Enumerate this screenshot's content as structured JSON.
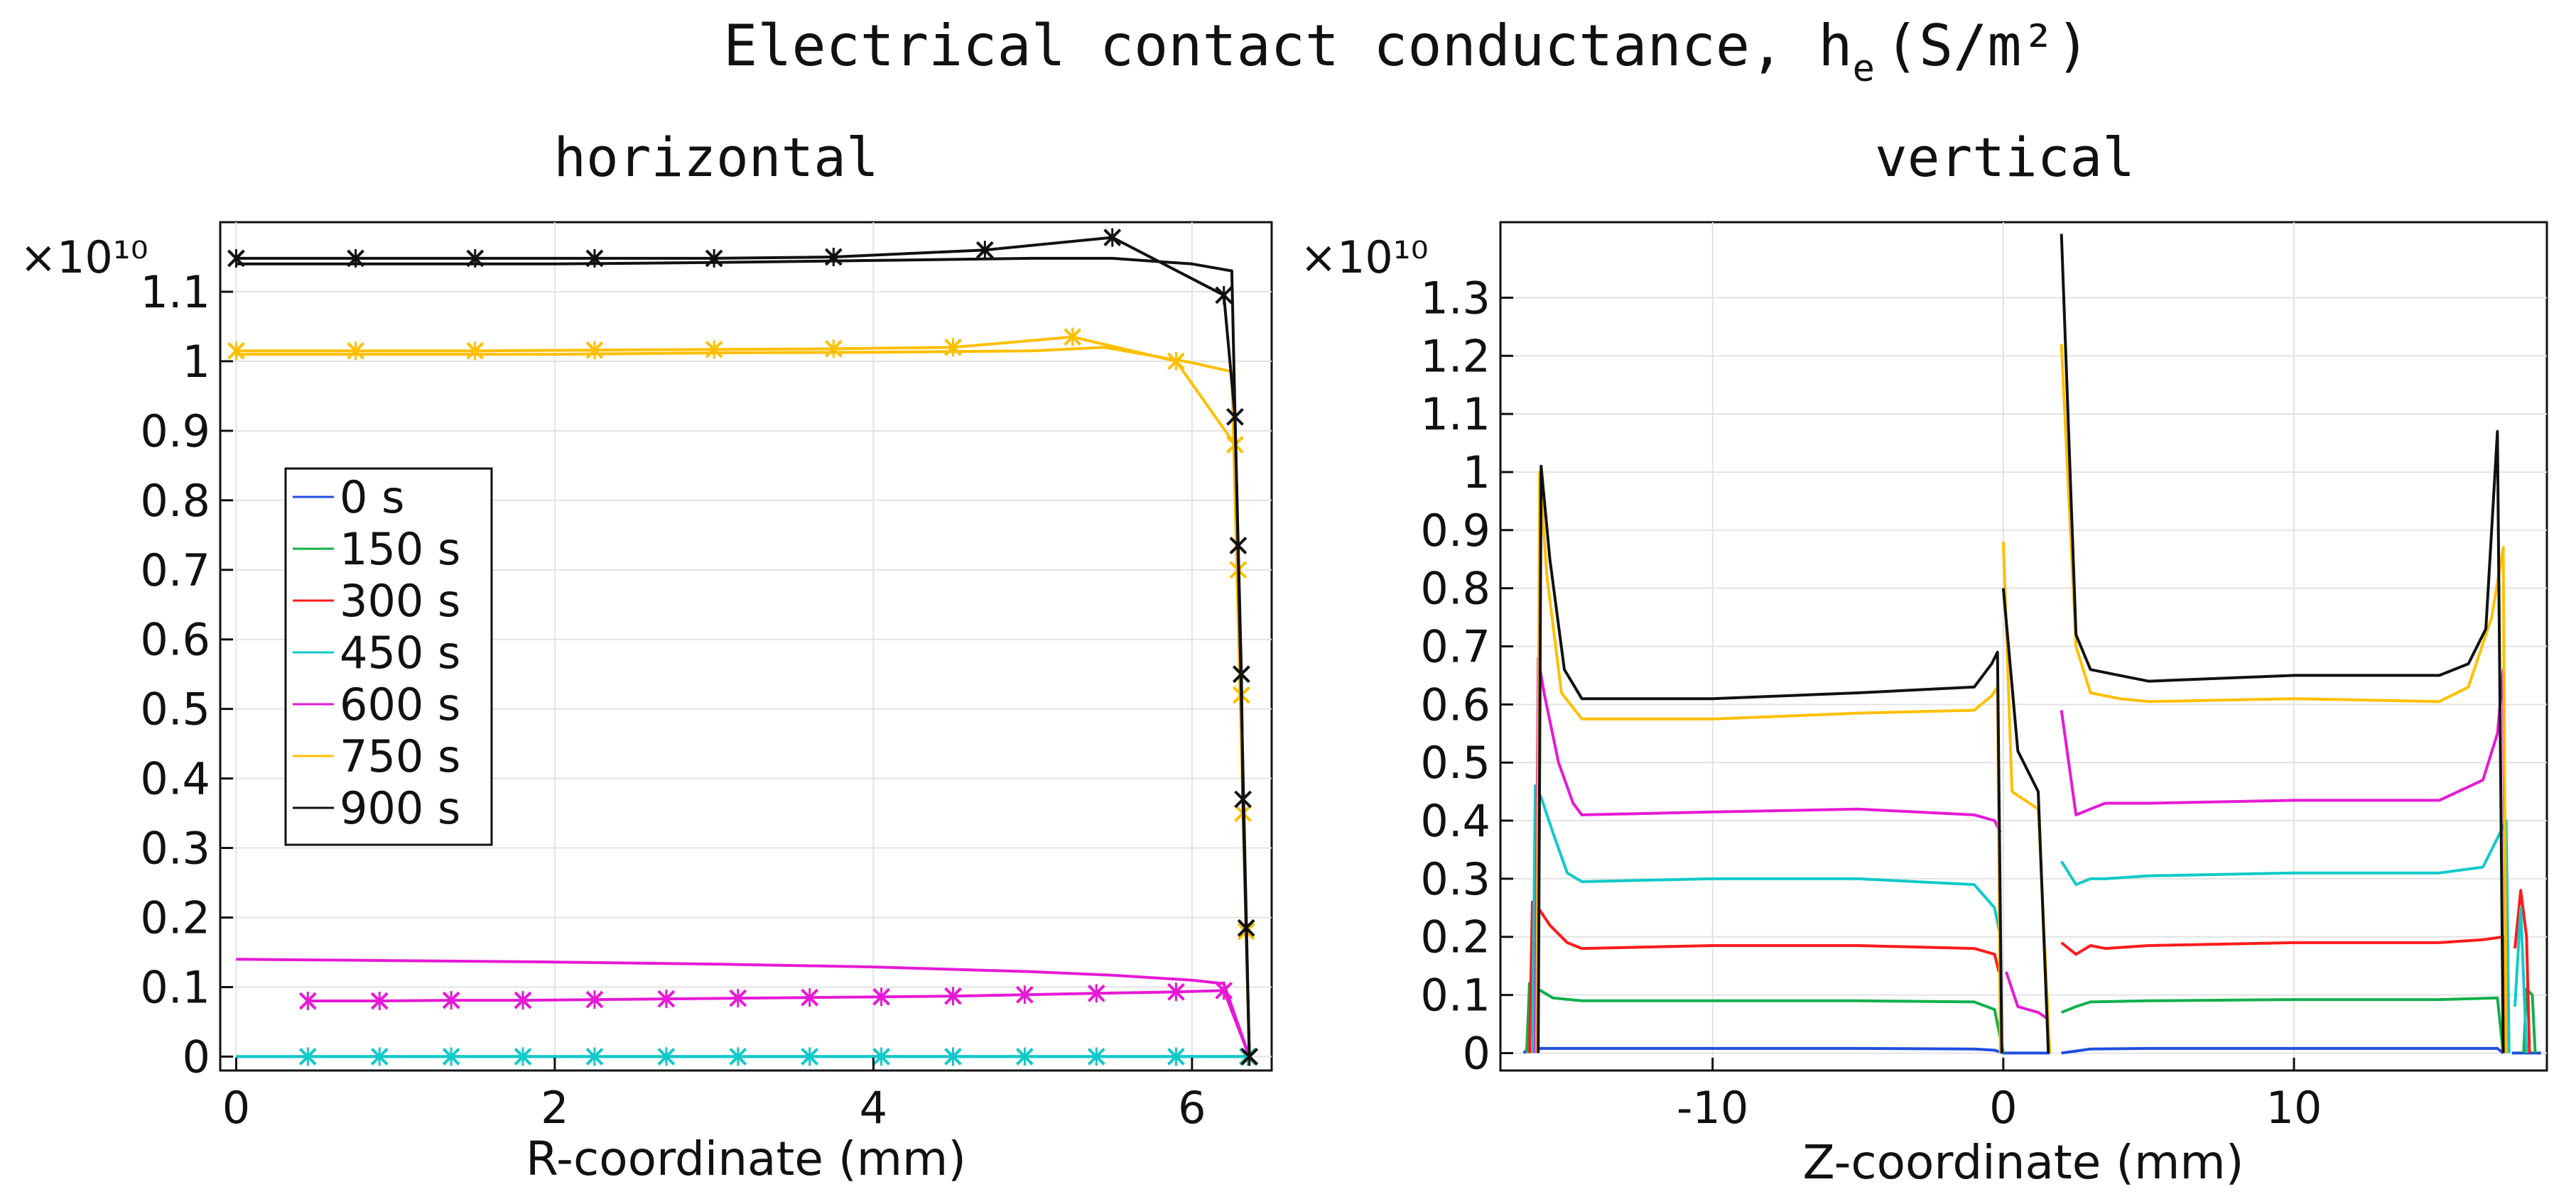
{
  "figure": {
    "title_text": "Electrical contact conductance, h",
    "title_subscript": "e",
    "title_units": "(S/m²)"
  },
  "chart_data": [
    {
      "type": "line",
      "panel": "horizontal",
      "title": "horizontal",
      "xlabel": "R-coordinate (mm)",
      "ylabel": "",
      "y_multiplier": "×10¹⁰",
      "xlim": [
        -0.1,
        6.5
      ],
      "ylim": [
        -0.02,
        1.2
      ],
      "xticks": [
        0,
        2,
        4,
        6
      ],
      "yticks": [
        0,
        0.1,
        0.2,
        0.3,
        0.4,
        0.5,
        0.6,
        0.7,
        0.8,
        0.9,
        1,
        1.1
      ],
      "grid": true,
      "legend": {
        "placement": "center-left",
        "entries": [
          {
            "label": "0 s",
            "color": "#1f4fe0"
          },
          {
            "label": "150 s",
            "color": "#11b04a"
          },
          {
            "label": "300 s",
            "color": "#ff1a1a"
          },
          {
            "label": "450 s",
            "color": "#11c9c9"
          },
          {
            "label": "600 s",
            "color": "#e619d6"
          },
          {
            "label": "750 s",
            "color": "#ffbf00"
          },
          {
            "label": "900 s",
            "color": "#111111"
          }
        ]
      },
      "series": [
        {
          "name": "0 s plain",
          "color": "#1f4fe0",
          "marker": "none",
          "x": [
            0,
            6.3,
            6.36
          ],
          "y": [
            0,
            0,
            0
          ]
        },
        {
          "name": "450 s plain",
          "color": "#11c9c9",
          "marker": "none",
          "x": [
            0,
            6.3,
            6.36
          ],
          "y": [
            0,
            0,
            0
          ]
        },
        {
          "name": "450 s marked",
          "color": "#11c9c9",
          "marker": "x",
          "x": [
            0.45,
            0.9,
            1.35,
            1.8,
            2.25,
            2.7,
            3.15,
            3.6,
            4.05,
            4.5,
            4.95,
            5.4,
            5.9,
            6.35
          ],
          "y": [
            0,
            0,
            0,
            0,
            0,
            0,
            0,
            0,
            0,
            0,
            0,
            0,
            0,
            0
          ]
        },
        {
          "name": "600 s plain",
          "color": "#e619d6",
          "marker": "none",
          "x": [
            0,
            1,
            2,
            3,
            4,
            5,
            5.5,
            6.0,
            6.2,
            6.36
          ],
          "y": [
            0.14,
            0.138,
            0.136,
            0.133,
            0.129,
            0.122,
            0.117,
            0.11,
            0.105,
            0.0
          ]
        },
        {
          "name": "600 s marked",
          "color": "#e619d6",
          "marker": "x",
          "x": [
            0.45,
            0.9,
            1.35,
            1.8,
            2.25,
            2.7,
            3.15,
            3.6,
            4.05,
            4.5,
            4.95,
            5.4,
            5.9,
            6.2,
            6.36
          ],
          "y": [
            0.08,
            0.08,
            0.081,
            0.081,
            0.082,
            0.083,
            0.084,
            0.085,
            0.086,
            0.087,
            0.089,
            0.091,
            0.093,
            0.095,
            0.0
          ]
        },
        {
          "name": "750 s plain",
          "color": "#ffbf00",
          "marker": "none",
          "x": [
            0,
            1,
            2,
            3,
            4,
            5,
            5.45,
            6.0,
            6.25,
            6.36
          ],
          "y": [
            1.01,
            1.01,
            1.01,
            1.012,
            1.013,
            1.015,
            1.02,
            0.998,
            0.985,
            0.0
          ]
        },
        {
          "name": "750 s marked",
          "color": "#ffbf00",
          "marker": "x",
          "x": [
            0,
            0.75,
            1.5,
            2.25,
            3.0,
            3.75,
            4.5,
            5.25,
            5.9,
            6.27,
            6.29,
            6.31,
            6.32,
            6.34,
            6.36
          ],
          "y": [
            1.015,
            1.015,
            1.015,
            1.016,
            1.017,
            1.018,
            1.02,
            1.035,
            1.0,
            0.88,
            0.7,
            0.52,
            0.35,
            0.18,
            0.0
          ]
        },
        {
          "name": "900 s plain",
          "color": "#111111",
          "marker": "none",
          "x": [
            0,
            1,
            2,
            3,
            4,
            5,
            5.5,
            6.0,
            6.25,
            6.36
          ],
          "y": [
            1.14,
            1.14,
            1.14,
            1.142,
            1.145,
            1.148,
            1.148,
            1.14,
            1.13,
            0.0
          ]
        },
        {
          "name": "900 s marked",
          "color": "#111111",
          "marker": "x",
          "x": [
            0,
            0.75,
            1.5,
            2.25,
            3.0,
            3.75,
            4.7,
            5.5,
            6.2,
            6.27,
            6.29,
            6.31,
            6.32,
            6.34,
            6.36
          ],
          "y": [
            1.148,
            1.148,
            1.148,
            1.148,
            1.148,
            1.15,
            1.16,
            1.178,
            1.095,
            0.92,
            0.735,
            0.55,
            0.37,
            0.185,
            0.0
          ]
        }
      ]
    },
    {
      "type": "line",
      "panel": "vertical",
      "title": "vertical",
      "xlabel": "Z-coordinate (mm)",
      "ylabel": "",
      "y_multiplier": "×10¹⁰",
      "xlim": [
        -17.3,
        18.7
      ],
      "ylim": [
        -0.03,
        1.43
      ],
      "xticks": [
        -10,
        0,
        10
      ],
      "yticks": [
        0,
        0.1,
        0.2,
        0.3,
        0.4,
        0.5,
        0.6,
        0.7,
        0.8,
        0.9,
        1,
        1.1,
        1.2,
        1.3
      ],
      "grid": true,
      "series": [
        {
          "name": "0 s",
          "color": "#1f4fe0",
          "segments": [
            {
              "x": [
                -16.5,
                -16.4,
                -16.0,
                -15.5,
                -14.5,
                -10,
                -5,
                -1,
                -0.3,
                0.0
              ],
              "y": [
                0,
                0.005,
                0.008,
                0.008,
                0.008,
                0.008,
                0.008,
                0.007,
                0.005,
                0.0
              ]
            },
            {
              "x": [
                0.0,
                1.6
              ],
              "y": [
                0.0,
                0.0
              ]
            },
            {
              "x": [
                2.0,
                3.0,
                5,
                10,
                15,
                17,
                17.2
              ],
              "y": [
                0.0,
                0.007,
                0.008,
                0.008,
                0.008,
                0.008,
                0.0
              ]
            },
            {
              "x": [
                17.5,
                18.3,
                18.5
              ],
              "y": [
                0,
                0,
                0
              ]
            }
          ]
        },
        {
          "name": "150 s",
          "color": "#11b04a",
          "segments": [
            {
              "x": [
                -16.4,
                -16.3,
                -16.0,
                -15.5,
                -14.5,
                -10,
                -5,
                -1,
                -0.3,
                0.0
              ],
              "y": [
                0,
                0.12,
                0.11,
                0.095,
                0.09,
                0.09,
                0.09,
                0.088,
                0.075,
                0.0
              ]
            },
            {
              "x": [
                2.0,
                2.5,
                3.0,
                5,
                10,
                15,
                17,
                17.2
              ],
              "y": [
                0.07,
                0.08,
                0.088,
                0.09,
                0.092,
                0.092,
                0.095,
                0.0
              ]
            },
            {
              "x": [
                17.9,
                18.0,
                18.2,
                18.3
              ],
              "y": [
                0,
                0.11,
                0.1,
                0
              ]
            }
          ]
        },
        {
          "name": "300 s",
          "color": "#ff1a1a",
          "segments": [
            {
              "x": [
                -16.3,
                -16.2,
                -16.0,
                -15.6,
                -15.0,
                -14.5,
                -10,
                -5,
                -1,
                -0.3,
                -0.15
              ],
              "y": [
                0,
                0.26,
                0.25,
                0.22,
                0.19,
                0.18,
                0.185,
                0.185,
                0.18,
                0.17,
                0.14
              ]
            },
            {
              "x": [
                2.0,
                2.5,
                3.0,
                3.5,
                5,
                10,
                15,
                16.5,
                17.2,
                17.3
              ],
              "y": [
                0.19,
                0.17,
                0.185,
                0.18,
                0.185,
                0.19,
                0.19,
                0.195,
                0.2,
                0.0
              ]
            },
            {
              "x": [
                17.6,
                17.8,
                18.0,
                18.1
              ],
              "y": [
                0.18,
                0.28,
                0.2,
                0
              ]
            }
          ]
        },
        {
          "name": "450 s",
          "color": "#11c9c9",
          "segments": [
            {
              "x": [
                -16.2,
                -16.1,
                -15.9,
                -15.5,
                -15.0,
                -14.5,
                -10,
                -5,
                -1,
                -0.3,
                -0.1
              ],
              "y": [
                0,
                0.46,
                0.44,
                0.38,
                0.31,
                0.295,
                0.3,
                0.3,
                0.29,
                0.25,
                0.2
              ]
            },
            {
              "x": [
                2.0,
                2.5,
                3.0,
                3.5,
                5,
                10,
                15,
                16.5,
                17.3,
                17.4
              ],
              "y": [
                0.33,
                0.29,
                0.3,
                0.3,
                0.305,
                0.31,
                0.31,
                0.32,
                0.4,
                0.0
              ]
            },
            {
              "x": [
                17.6,
                17.8,
                18.0
              ],
              "y": [
                0.08,
                0.25,
                0.0
              ]
            }
          ]
        },
        {
          "name": "600 s",
          "color": "#e619d6",
          "segments": [
            {
              "x": [
                -16.1,
                -16.0,
                -15.8,
                -15.3,
                -14.8,
                -14.5,
                -10,
                -5,
                -1,
                -0.3,
                -0.1
              ],
              "y": [
                0,
                0.68,
                0.62,
                0.5,
                0.43,
                0.41,
                0.415,
                0.42,
                0.41,
                0.4,
                0.38
              ]
            },
            {
              "x": [
                0.1,
                0.5,
                1.2,
                1.5
              ],
              "y": [
                0.14,
                0.08,
                0.07,
                0.06
              ]
            },
            {
              "x": [
                2.0,
                2.5,
                3.0,
                3.5,
                5,
                10,
                15,
                16.5,
                17.0,
                17.2,
                17.3
              ],
              "y": [
                0.59,
                0.41,
                0.42,
                0.43,
                0.43,
                0.435,
                0.435,
                0.47,
                0.55,
                0.66,
                0.0
              ]
            }
          ]
        },
        {
          "name": "750 s",
          "color": "#ffbf00",
          "segments": [
            {
              "x": [
                -16.05,
                -15.95,
                -15.7,
                -15.2,
                -14.5,
                -10,
                -5,
                -1,
                -0.4,
                -0.2,
                -0.1
              ],
              "y": [
                0,
                1.0,
                0.82,
                0.62,
                0.575,
                0.575,
                0.585,
                0.59,
                0.615,
                0.63,
                0.0
              ]
            },
            {
              "x": [
                0.0,
                0.3,
                1.2,
                1.6
              ],
              "y": [
                0.88,
                0.45,
                0.42,
                0.0
              ]
            },
            {
              "x": [
                2.0,
                2.5,
                3.0,
                4.0,
                5,
                10,
                15,
                16.0,
                16.8,
                17.2,
                17.3
              ],
              "y": [
                1.22,
                0.7,
                0.62,
                0.61,
                0.605,
                0.61,
                0.605,
                0.63,
                0.75,
                0.87,
                0.0
              ]
            }
          ]
        },
        {
          "name": "900 s",
          "color": "#111111",
          "segments": [
            {
              "x": [
                -16.0,
                -15.9,
                -15.6,
                -15.1,
                -14.5,
                -10,
                -5,
                -1,
                -0.4,
                -0.2,
                -0.05
              ],
              "y": [
                0,
                1.01,
                0.85,
                0.66,
                0.61,
                0.61,
                0.62,
                0.63,
                0.67,
                0.69,
                0.0
              ]
            },
            {
              "x": [
                0.0,
                0.5,
                1.2,
                1.55
              ],
              "y": [
                0.8,
                0.52,
                0.45,
                0.0
              ]
            },
            {
              "x": [
                2.0,
                2.5,
                3.0,
                4.0,
                5,
                10,
                15,
                16.0,
                16.6,
                17.0,
                17.2
              ],
              "y": [
                1.41,
                0.72,
                0.66,
                0.65,
                0.64,
                0.65,
                0.65,
                0.67,
                0.73,
                1.07,
                0.0
              ]
            }
          ]
        }
      ]
    }
  ]
}
